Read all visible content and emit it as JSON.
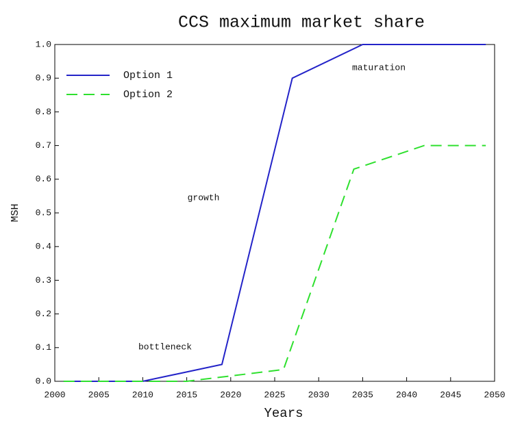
{
  "chart_data": {
    "type": "line",
    "title": "CCS maximum market share",
    "xlabel": "Years",
    "ylabel": "MSH",
    "xlim": [
      2000,
      2050
    ],
    "xticks": [
      2000,
      2005,
      2010,
      2015,
      2020,
      2025,
      2030,
      2035,
      2040,
      2045,
      2050
    ],
    "ylim": [
      0,
      1
    ],
    "yticks": [
      {
        "value": 0,
        "label": "0.0"
      },
      0.1,
      0.2,
      0.3,
      0.4,
      0.5,
      0.6,
      0.7,
      0.8,
      0.9,
      {
        "value": 1,
        "label": "1.0"
      }
    ],
    "legend": "upper left",
    "series": [
      {
        "name": "Option 1",
        "color": "#2323c8",
        "dash": "solid",
        "x": [
          2001,
          2010,
          2019,
          2027,
          2035,
          2049
        ],
        "values": [
          0,
          0,
          0.05,
          0.9,
          1.0,
          1.0
        ]
      },
      {
        "name": "Option 2",
        "color": "#2ee02e",
        "dash": "dashed",
        "x": [
          2001,
          2010,
          2015,
          2026,
          2034,
          2042,
          2049
        ],
        "values": [
          0,
          0,
          0,
          0.035,
          0.63,
          0.7,
          0.7
        ]
      }
    ],
    "annotations": [
      "maturation",
      "growth",
      "bottleneck"
    ]
  }
}
